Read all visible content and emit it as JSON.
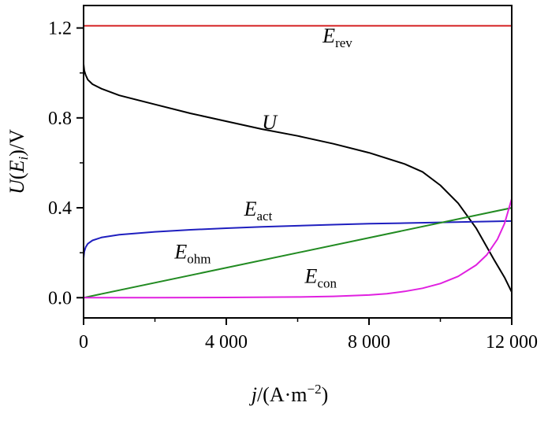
{
  "chart_data": {
    "type": "line",
    "title": "",
    "xlabel": {
      "base": "j",
      "mid": "/(A·m",
      "sup": "−2",
      "end": ")"
    },
    "ylabel": {
      "u": "U",
      "open": "(",
      "e": "E",
      "esub": "i",
      "close": ")/V"
    },
    "xlim": [
      0,
      12000
    ],
    "ylim": [
      -0.09,
      1.3
    ],
    "grid": false,
    "xticks": [
      {
        "value": 0,
        "label": "0"
      },
      {
        "value": 4000,
        "label": "4 000"
      },
      {
        "value": 8000,
        "label": "8 000"
      },
      {
        "value": 12000,
        "label": "12 000"
      }
    ],
    "yticks": [
      {
        "value": 0.0,
        "label": "0.0"
      },
      {
        "value": 0.4,
        "label": "0.4"
      },
      {
        "value": 0.8,
        "label": "0.8"
      },
      {
        "value": 1.2,
        "label": "1.2"
      }
    ],
    "series": [
      {
        "key": "erev",
        "base": "E",
        "sub": "rev",
        "color": "#d62728",
        "label_at": [
          6700,
          1.135
        ],
        "x": [
          0,
          12000
        ],
        "y": [
          1.21,
          1.21
        ]
      },
      {
        "key": "u",
        "base": "U",
        "sub": "",
        "color": "#000000",
        "label_at": [
          5000,
          0.75
        ],
        "x": [
          0,
          20,
          60,
          120,
          250,
          500,
          1000,
          2000,
          3000,
          4000,
          5000,
          6000,
          7000,
          8000,
          9000,
          9500,
          10000,
          10500,
          11000,
          11500,
          11800,
          12000
        ],
        "y": [
          1.04,
          1.01,
          0.99,
          0.97,
          0.95,
          0.93,
          0.9,
          0.86,
          0.82,
          0.785,
          0.75,
          0.72,
          0.685,
          0.645,
          0.595,
          0.56,
          0.5,
          0.42,
          0.31,
          0.17,
          0.09,
          0.025
        ]
      },
      {
        "key": "eact",
        "base": "E",
        "sub": "act",
        "color": "#1f1fbf",
        "label_at": [
          4500,
          0.365
        ],
        "x": [
          0,
          20,
          60,
          120,
          250,
          500,
          1000,
          2000,
          3000,
          4000,
          5000,
          6000,
          7000,
          8000,
          9000,
          10000,
          11000,
          12000
        ],
        "y": [
          0.175,
          0.205,
          0.225,
          0.24,
          0.255,
          0.268,
          0.28,
          0.293,
          0.302,
          0.309,
          0.315,
          0.32,
          0.325,
          0.329,
          0.332,
          0.335,
          0.338,
          0.341
        ]
      },
      {
        "key": "eohm",
        "base": "E",
        "sub": "ohm",
        "color": "#228b22",
        "label_at": [
          2550,
          0.175
        ],
        "x": [
          0,
          12000
        ],
        "y": [
          0.0,
          0.4
        ]
      },
      {
        "key": "econ",
        "base": "E",
        "sub": "con",
        "color": "#e020e0",
        "label_at": [
          6200,
          0.065
        ],
        "x": [
          0,
          2000,
          4000,
          6000,
          7000,
          8000,
          8500,
          9000,
          9500,
          10000,
          10500,
          11000,
          11300,
          11600,
          11800,
          12000
        ],
        "y": [
          0,
          0.0005,
          0.001,
          0.003,
          0.006,
          0.012,
          0.018,
          0.028,
          0.042,
          0.063,
          0.095,
          0.145,
          0.19,
          0.26,
          0.33,
          0.44
        ]
      }
    ]
  }
}
